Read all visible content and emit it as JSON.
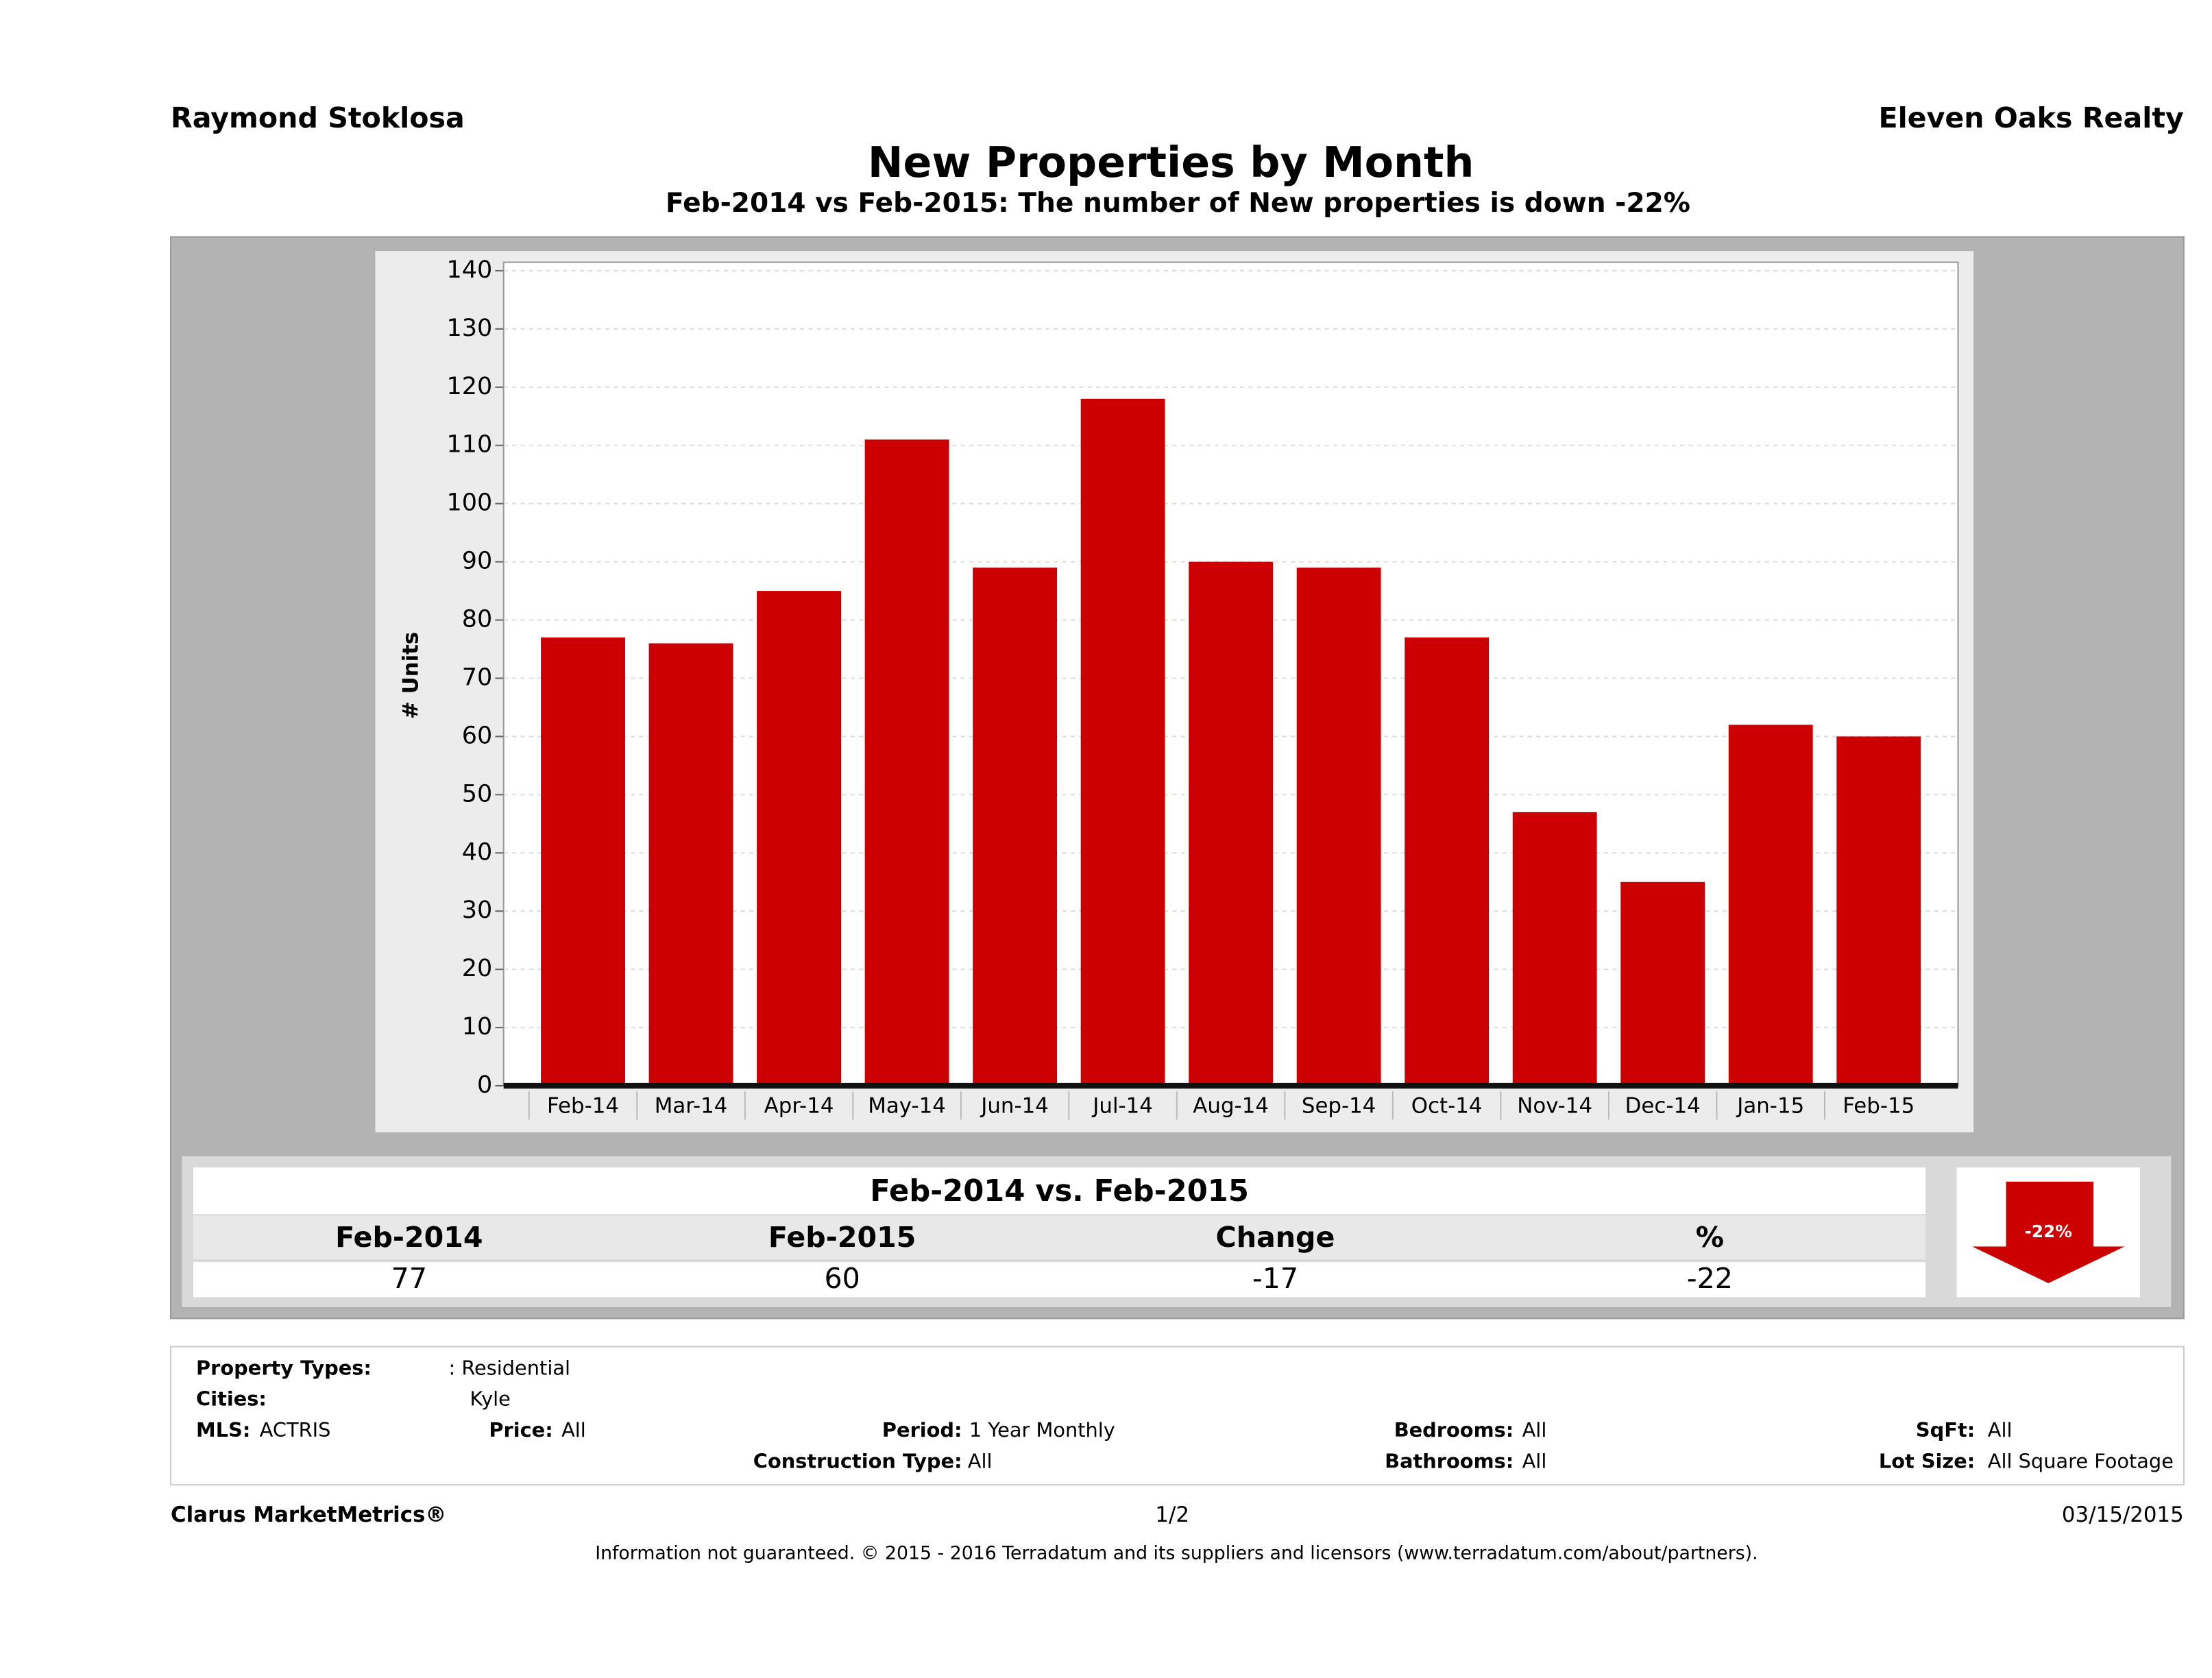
{
  "header": {
    "agent": "Raymond Stoklosa",
    "company": "Eleven Oaks Realty"
  },
  "chart_data": {
    "type": "bar",
    "title": "New Properties by Month",
    "subtitle": "Feb-2014 vs Feb-2015: The number of New  properties is down -22%",
    "y_label": "# Units",
    "categories": [
      "Feb-14",
      "Mar-14",
      "Apr-14",
      "May-14",
      "Jun-14",
      "Jul-14",
      "Aug-14",
      "Sep-14",
      "Oct-14",
      "Nov-14",
      "Dec-14",
      "Jan-15",
      "Feb-15"
    ],
    "values": [
      77,
      76,
      85,
      111,
      89,
      118,
      90,
      89,
      77,
      47,
      35,
      62,
      60
    ],
    "color": "#cc0000",
    "ylim": [
      0,
      140
    ],
    "yticks": [
      0,
      10,
      20,
      30,
      40,
      50,
      60,
      70,
      80,
      90,
      100,
      110,
      120,
      130,
      140
    ],
    "grid": true
  },
  "summary": {
    "title": "Feb-2014 vs. Feb-2015",
    "headers": [
      "Feb-2014",
      "Feb-2015",
      "Change",
      "%"
    ],
    "values": [
      77,
      60,
      -17,
      -22
    ],
    "badge": "-22%"
  },
  "filters": [
    {
      "label": "Property Types:",
      "value": ": Residential"
    },
    {
      "label": "Cities:",
      "value": "Kyle"
    },
    {
      "label": "MLS:",
      "value": "ACTRIS"
    },
    {
      "label": "Price:",
      "value": "All"
    },
    {
      "label": "Period:",
      "value": "1 Year Monthly"
    },
    {
      "label": "Construction Type:",
      "value": "All"
    },
    {
      "label": "Bedrooms:",
      "value": "All"
    },
    {
      "label": "Bathrooms:",
      "value": "All"
    },
    {
      "label": "SqFt:",
      "value": "All"
    },
    {
      "label": "Lot Size:",
      "value": "All Square Footage"
    }
  ],
  "footer": {
    "brand": "Clarus MarketMetrics®",
    "page": "1/2",
    "date": "03/15/2015",
    "disclaimer": "Information not guaranteed. © 2015 - 2016 Terradatum and its suppliers and licensors (www.terradatum.com/about/partners)."
  }
}
